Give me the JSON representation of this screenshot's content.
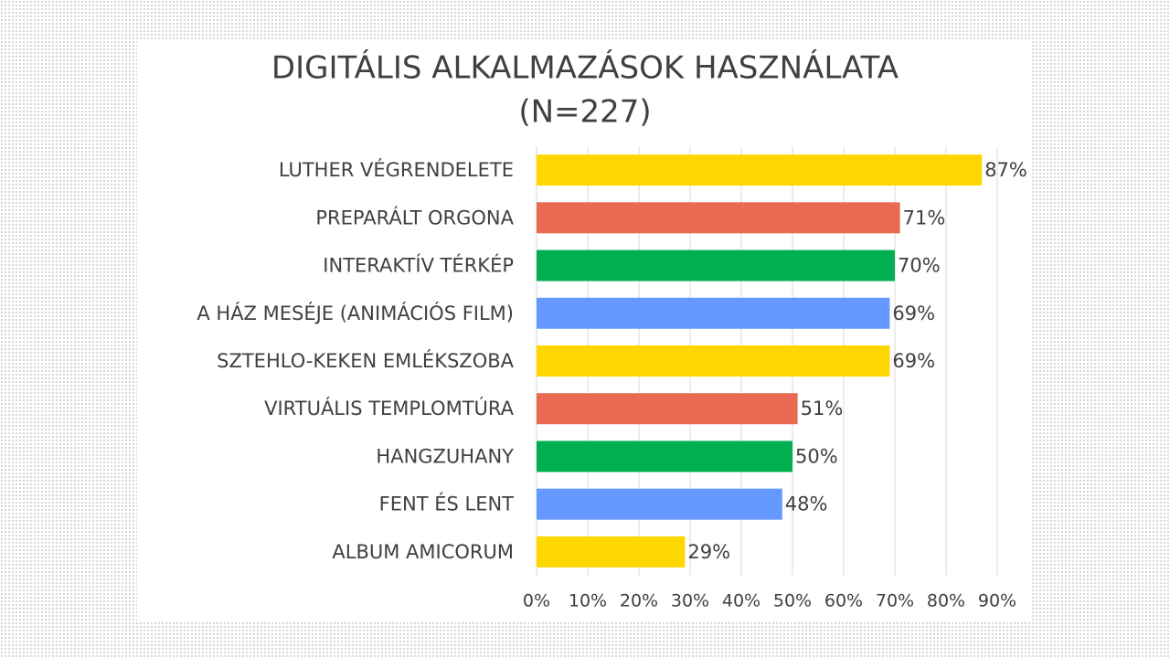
{
  "chart_data": {
    "type": "bar",
    "orientation": "horizontal",
    "title": "DIGITÁLIS ALKALMAZÁSOK HASZNÁLATA",
    "subtitle": "(N=227)",
    "categories": [
      "LUTHER VÉGRENDELETE",
      "PREPARÁLT ORGONA",
      "INTERAKTÍV TÉRKÉP",
      "A HÁZ MESÉJE (ANIMÁCIÓS FILM)",
      "SZTEHLO-KEKEN EMLÉKSZOBA",
      "VIRTUÁLIS TEMPLOMTÚRA",
      "HANGZUHANY",
      "FENT ÉS LENT",
      "ALBUM AMICORUM"
    ],
    "values": [
      87,
      71,
      70,
      69,
      69,
      51,
      50,
      48,
      29
    ],
    "value_labels": [
      "87%",
      "71%",
      "70%",
      "69%",
      "69%",
      "51%",
      "50%",
      "48%",
      "29%"
    ],
    "colors": [
      "#ffd700",
      "#e96a50",
      "#00b050",
      "#6699ff",
      "#ffd700",
      "#e96a50",
      "#00b050",
      "#6699ff",
      "#ffd700"
    ],
    "xlim": [
      0,
      90
    ],
    "xticks": [
      {
        "value": 0,
        "label": "0%"
      },
      {
        "value": 10,
        "label": "10%"
      },
      {
        "value": 20,
        "label": "20%"
      },
      {
        "value": 30,
        "label": "30%"
      },
      {
        "value": 40,
        "label": "40%"
      },
      {
        "value": 50,
        "label": "50%"
      },
      {
        "value": 60,
        "label": "60%"
      },
      {
        "value": 70,
        "label": "70%"
      },
      {
        "value": 80,
        "label": "80%"
      },
      {
        "value": 90,
        "label": "90%"
      }
    ],
    "grid": true
  }
}
